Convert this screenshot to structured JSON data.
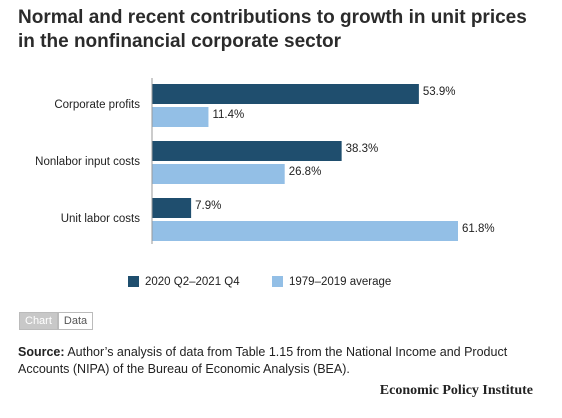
{
  "chart_data": {
    "type": "hbar",
    "title": "Normal and recent contributions to growth in unit prices in the nonfinancial corporate sector",
    "categories": [
      "Corporate profits",
      "Nonlabor input costs",
      "Unit labor costs"
    ],
    "series": [
      {
        "name": "2020 Q2–2021 Q4",
        "color": "#1f4e6e",
        "values": [
          53.9,
          38.3,
          7.9
        ],
        "value_labels": [
          "53.9%",
          "38.3%",
          "7.9%"
        ]
      },
      {
        "name": "1979–2019 average",
        "color": "#93bfe6",
        "values": [
          11.4,
          26.8,
          61.8
        ],
        "value_labels": [
          "11.4%",
          "26.8%",
          "61.8%"
        ]
      }
    ]
  },
  "tabs": [
    "Chart",
    "Data"
  ],
  "source": {
    "label": "Source:",
    "text": "Author’s analysis of data from Table 1.15 from the National Income and Product Accounts (NIPA) of the Bureau of Economic Analysis (BEA)."
  },
  "footer": "Economic Policy Institute"
}
